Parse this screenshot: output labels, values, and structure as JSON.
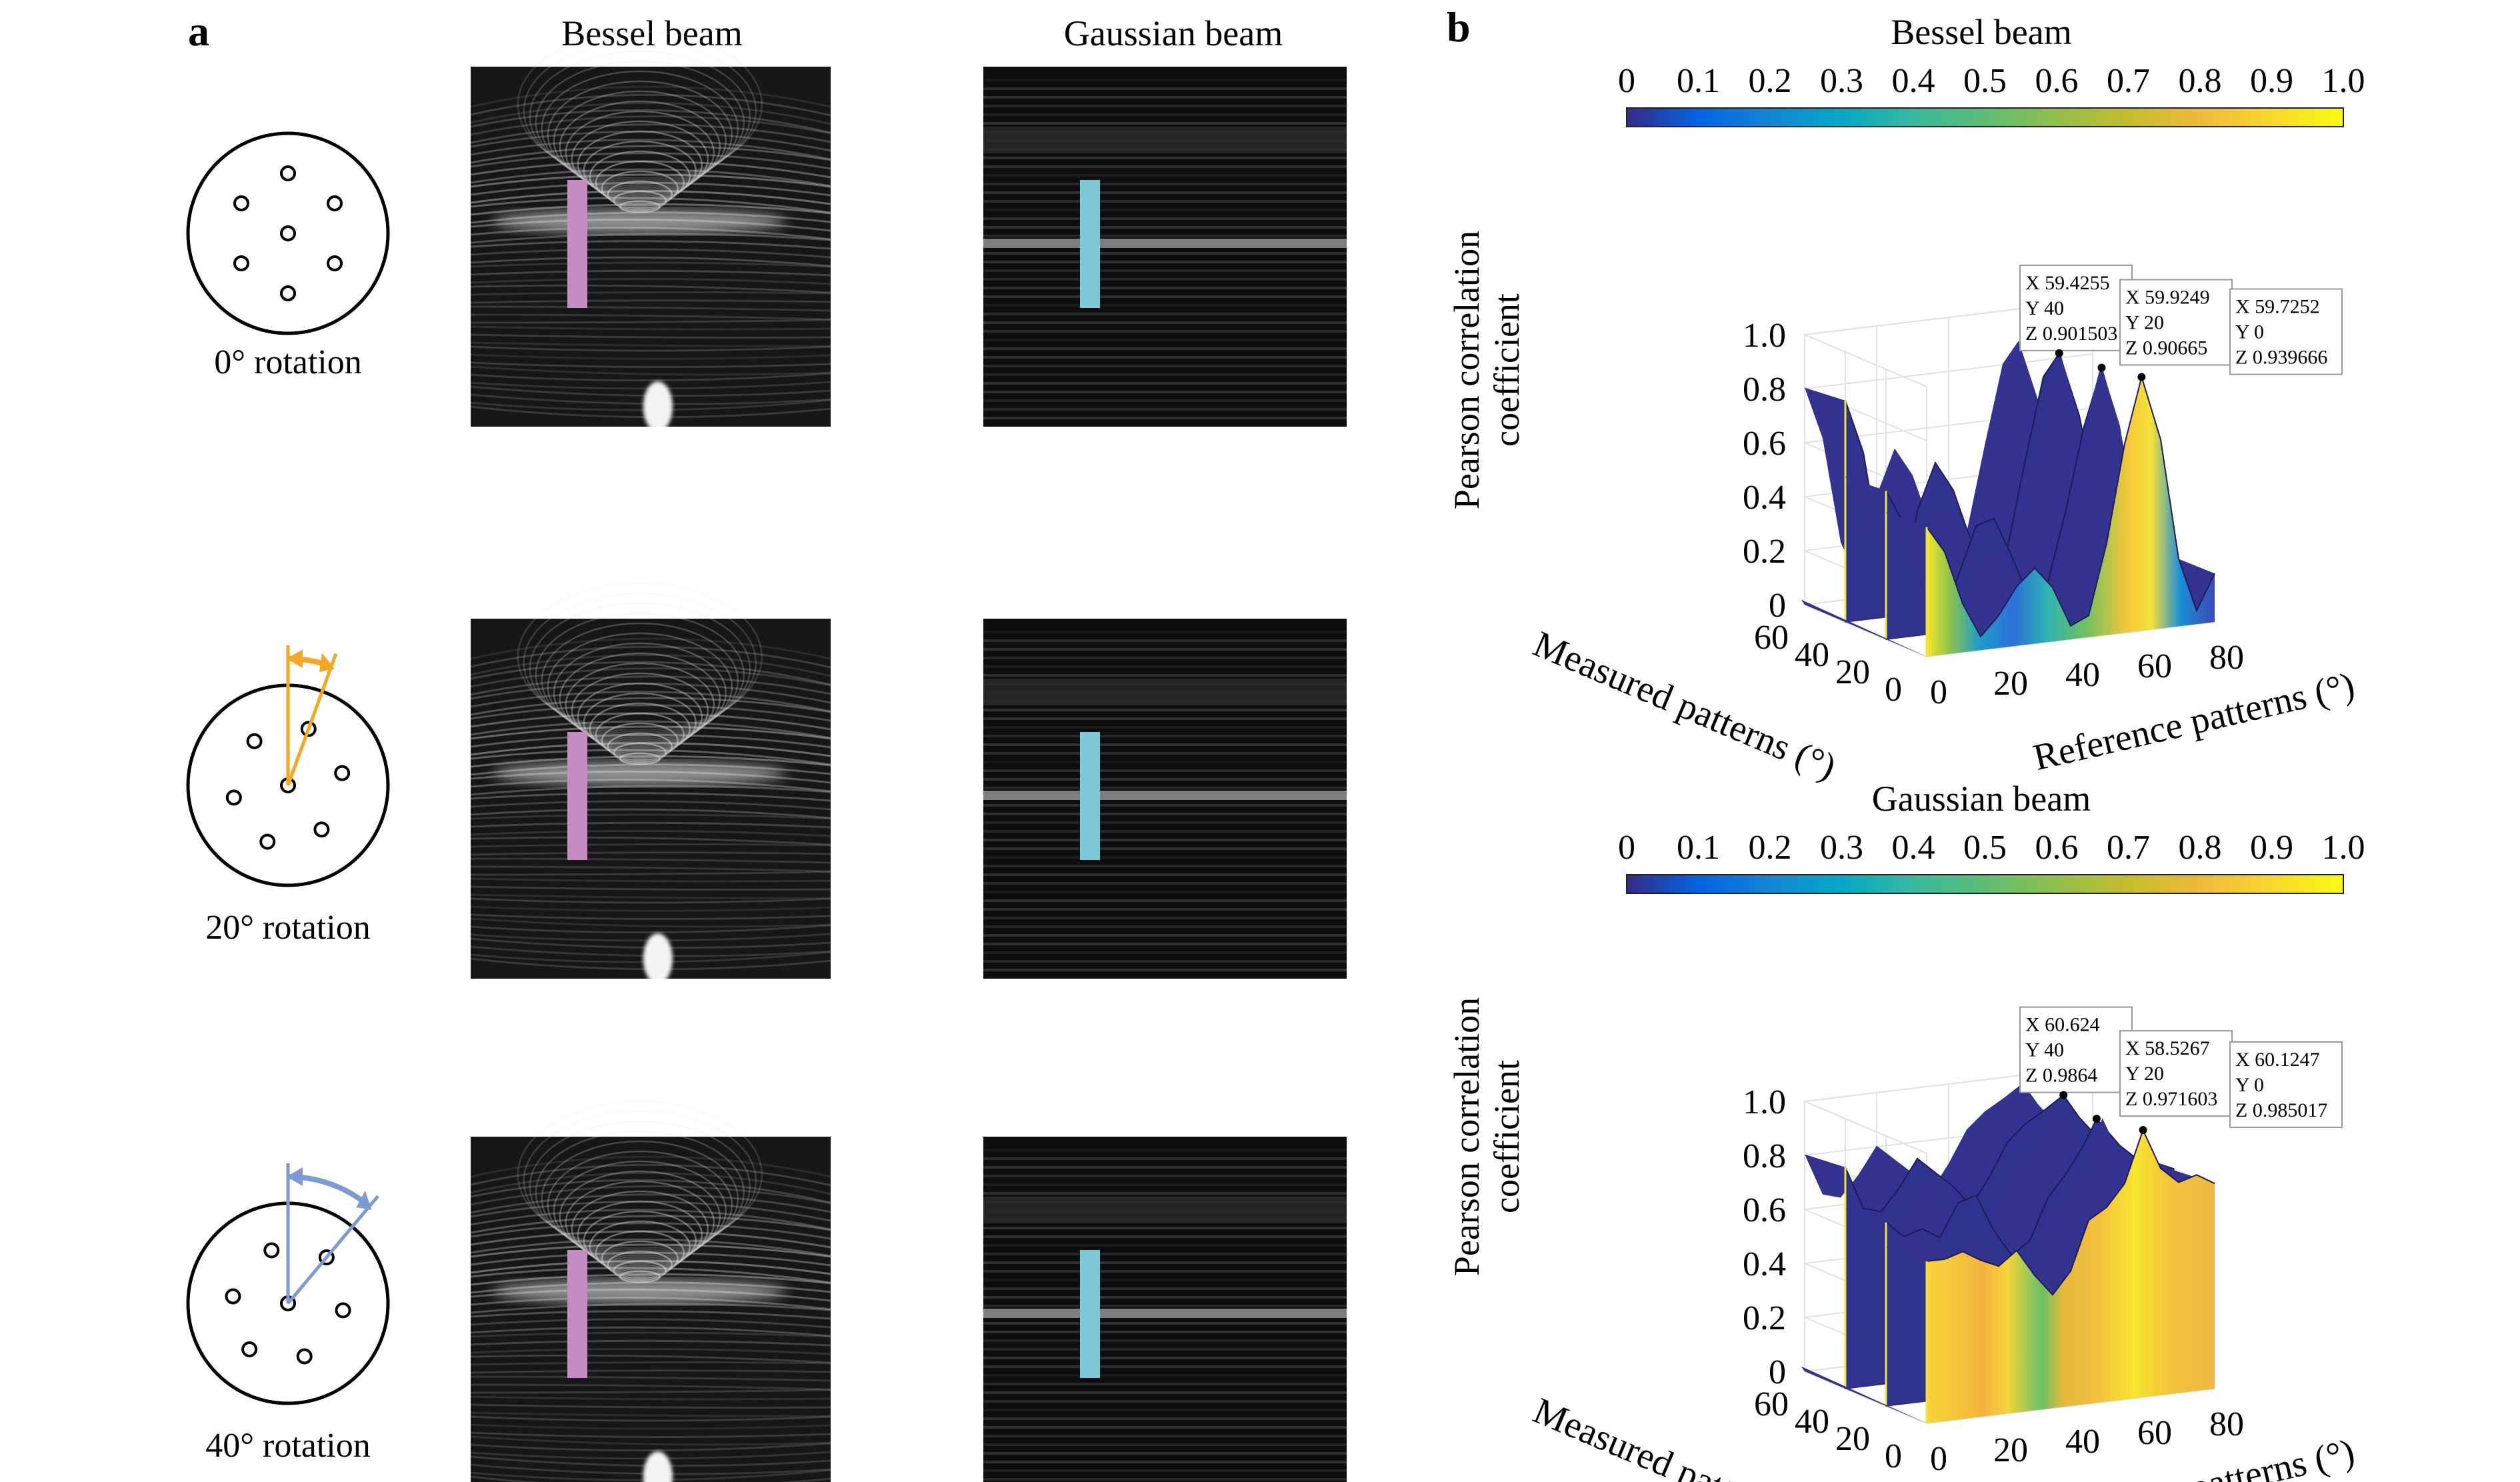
{
  "panel_a": {
    "letter": "a",
    "column_titles": [
      "Bessel beam",
      "Gaussian beam"
    ],
    "rows": [
      {
        "label": "0° rotation",
        "angle_deg": 0,
        "arrow_color": ""
      },
      {
        "label": "20° rotation",
        "angle_deg": 20,
        "arrow_color": "#F5A623"
      },
      {
        "label": "40° rotation",
        "angle_deg": 40,
        "arrow_color": "#7B9BD1"
      }
    ],
    "bessel_marker_color": "#C48BC4",
    "gaussian_marker_color": "#7FC8D8"
  },
  "panel_b": {
    "letter": "b"
  },
  "chart_data": [
    {
      "type": "surface",
      "title": "Bessel beam",
      "colorbar": {
        "ticks": [
          "0",
          "0.1",
          "0.2",
          "0.3",
          "0.4",
          "0.5",
          "0.6",
          "0.7",
          "0.8",
          "0.9",
          "1.0"
        ],
        "range": [
          0,
          1
        ]
      },
      "zlabel": "Pearson correlation coefficient",
      "xlabel": "Reference patterns (°)",
      "ylabel": "Measured patterns (°)",
      "xticks": [
        "0",
        "20",
        "40",
        "60",
        "80"
      ],
      "yticks": [
        "0",
        "20",
        "40",
        "60"
      ],
      "zticks": [
        "0",
        "0.2",
        "0.4",
        "0.6",
        "0.8",
        "1.0"
      ],
      "xlim": [
        0,
        80
      ],
      "ylim": [
        0,
        60
      ],
      "zlim": [
        0,
        1
      ],
      "series": [
        {
          "y": 0,
          "x": [
            0,
            5,
            10,
            15,
            20,
            25,
            30,
            35,
            40,
            45,
            50,
            55,
            59.7,
            65,
            70,
            75,
            80
          ],
          "values": [
            0.48,
            0.38,
            0.18,
            0.05,
            0.12,
            0.22,
            0.28,
            0.2,
            0.05,
            0.08,
            0.34,
            0.7,
            0.94,
            0.7,
            0.25,
            0.05,
            0.18
          ]
        },
        {
          "y": 20,
          "x": [
            0,
            5,
            10,
            15,
            20,
            25,
            30,
            35,
            40,
            45,
            50,
            55,
            59.9,
            65,
            70,
            75,
            80
          ],
          "values": [
            0.55,
            0.42,
            0.18,
            0.05,
            0.2,
            0.38,
            0.4,
            0.25,
            0.08,
            0.14,
            0.4,
            0.7,
            0.91,
            0.66,
            0.35,
            0.12,
            0.2
          ]
        },
        {
          "y": 40,
          "x": [
            0,
            5,
            10,
            15,
            20,
            25,
            30,
            35,
            40,
            45,
            50,
            55,
            59.4,
            65,
            70,
            75,
            80
          ],
          "values": [
            0.82,
            0.62,
            0.22,
            0.06,
            0.38,
            0.55,
            0.44,
            0.24,
            0.1,
            0.2,
            0.52,
            0.82,
            0.9,
            0.66,
            0.32,
            0.12,
            0.22
          ]
        }
      ],
      "datatips": [
        {
          "x": "59.4255",
          "y": "40",
          "z": "0.901503"
        },
        {
          "x": "59.9249",
          "y": "20",
          "z": "0.90665"
        },
        {
          "x": "59.7252",
          "y": "0",
          "z": "0.939666"
        }
      ]
    },
    {
      "type": "surface",
      "title": "Gaussian beam",
      "colorbar": {
        "ticks": [
          "0",
          "0.1",
          "0.2",
          "0.3",
          "0.4",
          "0.5",
          "0.6",
          "0.7",
          "0.8",
          "0.9",
          "1.0"
        ],
        "range": [
          0,
          1
        ]
      },
      "zlabel": "Pearson correlation coefficient",
      "xlabel": "Reference patterns (°)",
      "ylabel": "Measured patterns (°)",
      "xticks": [
        "0",
        "20",
        "40",
        "60",
        "80"
      ],
      "yticks": [
        "0",
        "20",
        "40",
        "60"
      ],
      "zticks": [
        "0",
        "0.2",
        "0.4",
        "0.6",
        "0.8",
        "1.0"
      ],
      "xlim": [
        0,
        80
      ],
      "ylim": [
        0,
        60
      ],
      "zlim": [
        0,
        1
      ],
      "series": [
        {
          "y": 0,
          "x": [
            0,
            5,
            10,
            15,
            20,
            25,
            30,
            35,
            40,
            45,
            50,
            55,
            60.1,
            65,
            70,
            75,
            80
          ],
          "values": [
            0.6,
            0.6,
            0.62,
            0.58,
            0.55,
            0.6,
            0.5,
            0.42,
            0.5,
            0.68,
            0.72,
            0.8,
            0.99,
            0.84,
            0.78,
            0.8,
            0.76
          ]
        },
        {
          "y": 20,
          "x": [
            0,
            5,
            10,
            15,
            20,
            25,
            30,
            35,
            40,
            45,
            50,
            55,
            58.5,
            65,
            70,
            75,
            80
          ],
          "values": [
            0.68,
            0.62,
            0.64,
            0.6,
            0.72,
            0.74,
            0.6,
            0.5,
            0.55,
            0.7,
            0.78,
            0.88,
            0.97,
            0.86,
            0.8,
            0.78,
            0.75
          ]
        },
        {
          "y": 40,
          "x": [
            0,
            5,
            10,
            15,
            20,
            25,
            30,
            35,
            40,
            45,
            50,
            55,
            60.6,
            65,
            70,
            75,
            80
          ],
          "values": [
            0.82,
            0.66,
            0.64,
            0.72,
            0.82,
            0.76,
            0.7,
            0.62,
            0.72,
            0.84,
            0.9,
            0.94,
            0.99,
            0.9,
            0.82,
            0.76,
            0.7
          ]
        }
      ],
      "datatips": [
        {
          "x": "60.624",
          "y": "40",
          "z": "0.9864"
        },
        {
          "x": "58.5267",
          "y": "20",
          "z": "0.971603"
        },
        {
          "x": "60.1247",
          "y": "0",
          "z": "0.985017"
        }
      ]
    }
  ]
}
